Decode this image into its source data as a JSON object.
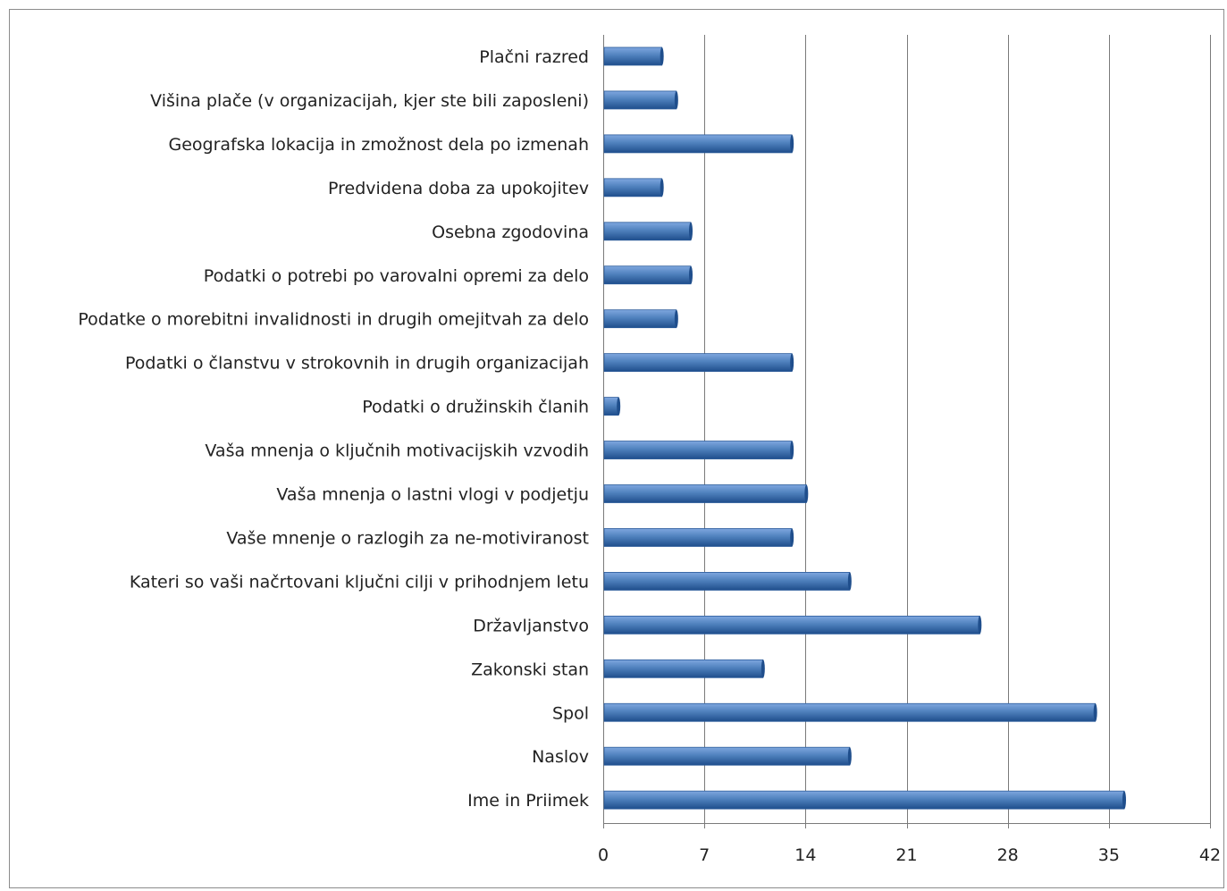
{
  "colors": {
    "bar_top": "#7fa7df",
    "bar_mid": "#4f81bd",
    "bar_bottom": "#1f4e8c",
    "bar_stroke": "#2a5a9a",
    "grid": "#7a7a7a",
    "frame": "#8c8c8c"
  },
  "chart_data": {
    "type": "bar",
    "orientation": "horizontal",
    "categories": [
      "Plačni razred",
      "Višina plače (v organizacijah,  kjer ste bili zaposleni)",
      "Geografska lokacija in zmožnost  dela po izmenah",
      "Predvidena doba za upokojitev",
      "Osebna zgodovina",
      "Podatki o potrebi po varovalni opremi za delo",
      "Podatke o morebitni invalidnosti  in drugih omejitvah za delo",
      "Podatki o članstvu v strokovnih in drugih organizacijah",
      "Podatki o družinskih članih",
      "Vaša mnenja o ključnih motivacijskih vzvodih",
      "Vaša mnenja o lastni vlogi v podjetju",
      "Vaše mnenje o razlogih za ne-motiviranost",
      "Kateri so vaši načrtovani ključni cilji v prihodnjem letu",
      "Državljanstvo",
      "Zakonski stan",
      "Spol",
      "Naslov",
      "Ime in Priimek"
    ],
    "values": [
      4,
      5,
      13,
      4,
      6,
      6,
      5,
      13,
      1,
      13,
      14,
      13,
      17,
      26,
      11,
      34,
      17,
      36
    ],
    "xlim": [
      0,
      42
    ],
    "xticks": [
      "0",
      "7",
      "14",
      "21",
      "28",
      "35",
      "42"
    ],
    "tick_values": [
      0,
      7,
      14,
      21,
      28,
      35,
      42
    ],
    "grid": "vertical",
    "title": "",
    "xlabel": "",
    "ylabel": ""
  }
}
